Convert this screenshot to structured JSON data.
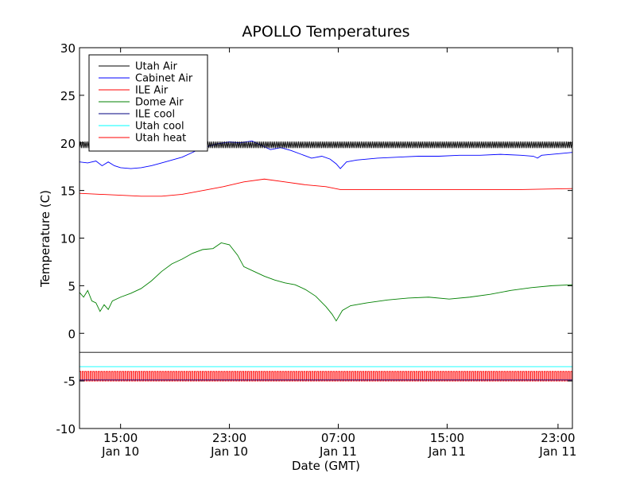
{
  "chart_data": {
    "type": "line",
    "title": "APOLLO Temperatures",
    "xlabel": "Date (GMT)",
    "ylabel": "Temperature (C)",
    "xlim": [
      10.5,
      34.5
    ],
    "ylim": [
      -10,
      30
    ],
    "y_ticks": [
      -10,
      -5,
      0,
      5,
      10,
      15,
      20,
      25,
      30
    ],
    "y_tick_labels": [
      "-10",
      "-5",
      "0",
      "5",
      "10",
      "15",
      "20",
      "25",
      "30"
    ],
    "x_ticks": [
      {
        "x": 12.5,
        "time": "15:00",
        "date": "Jan 10"
      },
      {
        "x": 17.8,
        "time": "23:00",
        "date": "Jan 10"
      },
      {
        "x": 23.1,
        "time": "07:00",
        "date": "Jan 11"
      },
      {
        "x": 28.4,
        "time": "15:00",
        "date": "Jan 11"
      },
      {
        "x": 33.8,
        "time": "23:00",
        "date": "Jan 11"
      }
    ],
    "legend_position": "top-left",
    "series": [
      {
        "name": "Utah Air",
        "color": "#000000",
        "style": "oscillating",
        "base": [
          [
            10.5,
            19.8
          ],
          [
            34.5,
            19.8
          ]
        ],
        "amplitude": 0.35,
        "period": 0.09
      },
      {
        "name": "Cabinet Air",
        "color": "#0000ff",
        "style": "line",
        "points": [
          [
            10.5,
            18.0
          ],
          [
            10.9,
            17.9
          ],
          [
            11.3,
            18.1
          ],
          [
            11.6,
            17.6
          ],
          [
            11.9,
            18.0
          ],
          [
            12.2,
            17.6
          ],
          [
            12.5,
            17.4
          ],
          [
            13.0,
            17.3
          ],
          [
            13.5,
            17.4
          ],
          [
            14.0,
            17.6
          ],
          [
            14.5,
            17.9
          ],
          [
            15.0,
            18.2
          ],
          [
            15.5,
            18.5
          ],
          [
            16.0,
            19.0
          ],
          [
            16.4,
            19.4
          ],
          [
            16.7,
            19.6
          ],
          [
            17.2,
            19.9
          ],
          [
            17.8,
            20.1
          ],
          [
            18.3,
            20.0
          ],
          [
            18.6,
            20.1
          ],
          [
            18.9,
            20.2
          ],
          [
            19.3,
            19.8
          ],
          [
            19.8,
            19.3
          ],
          [
            20.3,
            19.5
          ],
          [
            20.8,
            19.2
          ],
          [
            21.3,
            18.8
          ],
          [
            21.8,
            18.4
          ],
          [
            22.3,
            18.6
          ],
          [
            22.7,
            18.3
          ],
          [
            23.0,
            17.8
          ],
          [
            23.2,
            17.3
          ],
          [
            23.5,
            18.0
          ],
          [
            24.0,
            18.2
          ],
          [
            25.0,
            18.4
          ],
          [
            26.0,
            18.5
          ],
          [
            27.0,
            18.6
          ],
          [
            28.0,
            18.6
          ],
          [
            29.0,
            18.7
          ],
          [
            30.0,
            18.7
          ],
          [
            31.0,
            18.8
          ],
          [
            32.0,
            18.7
          ],
          [
            32.6,
            18.6
          ],
          [
            32.8,
            18.4
          ],
          [
            33.0,
            18.7
          ],
          [
            34.0,
            18.9
          ],
          [
            34.5,
            19.0
          ]
        ]
      },
      {
        "name": "ILE Air",
        "color": "#ff0000",
        "style": "line",
        "points": [
          [
            10.5,
            14.7
          ],
          [
            11.5,
            14.6
          ],
          [
            12.5,
            14.5
          ],
          [
            13.5,
            14.4
          ],
          [
            14.5,
            14.4
          ],
          [
            15.5,
            14.6
          ],
          [
            16.5,
            15.0
          ],
          [
            17.5,
            15.4
          ],
          [
            18.5,
            15.9
          ],
          [
            19.5,
            16.2
          ],
          [
            20.5,
            15.9
          ],
          [
            21.5,
            15.6
          ],
          [
            22.5,
            15.4
          ],
          [
            23.2,
            15.1
          ],
          [
            24.0,
            15.1
          ],
          [
            26.0,
            15.1
          ],
          [
            28.0,
            15.1
          ],
          [
            30.0,
            15.1
          ],
          [
            32.0,
            15.1
          ],
          [
            34.5,
            15.2
          ]
        ]
      },
      {
        "name": "Dome Air",
        "color": "#008000",
        "style": "line",
        "points": [
          [
            10.5,
            4.3
          ],
          [
            10.7,
            3.8
          ],
          [
            10.9,
            4.5
          ],
          [
            11.1,
            3.4
          ],
          [
            11.3,
            3.2
          ],
          [
            11.5,
            2.3
          ],
          [
            11.7,
            3.0
          ],
          [
            11.9,
            2.5
          ],
          [
            12.1,
            3.4
          ],
          [
            12.5,
            3.8
          ],
          [
            13.0,
            4.2
          ],
          [
            13.5,
            4.7
          ],
          [
            14.0,
            5.5
          ],
          [
            14.5,
            6.5
          ],
          [
            15.0,
            7.3
          ],
          [
            15.5,
            7.8
          ],
          [
            16.0,
            8.4
          ],
          [
            16.5,
            8.8
          ],
          [
            17.0,
            8.9
          ],
          [
            17.4,
            9.5
          ],
          [
            17.8,
            9.3
          ],
          [
            18.2,
            8.2
          ],
          [
            18.5,
            7.0
          ],
          [
            19.0,
            6.5
          ],
          [
            19.5,
            6.0
          ],
          [
            20.0,
            5.6
          ],
          [
            20.5,
            5.3
          ],
          [
            21.0,
            5.1
          ],
          [
            21.5,
            4.6
          ],
          [
            22.0,
            3.9
          ],
          [
            22.5,
            2.8
          ],
          [
            22.8,
            2.0
          ],
          [
            23.0,
            1.3
          ],
          [
            23.3,
            2.4
          ],
          [
            23.7,
            2.9
          ],
          [
            24.5,
            3.2
          ],
          [
            25.5,
            3.5
          ],
          [
            26.5,
            3.7
          ],
          [
            27.5,
            3.8
          ],
          [
            28.5,
            3.6
          ],
          [
            29.5,
            3.8
          ],
          [
            30.5,
            4.1
          ],
          [
            31.5,
            4.5
          ],
          [
            32.5,
            4.8
          ],
          [
            33.5,
            5.0
          ],
          [
            34.5,
            5.1
          ]
        ]
      },
      {
        "name": "ILE cool",
        "color": "#000080",
        "style": "constant",
        "value": -4.9
      },
      {
        "name": "Utah cool",
        "color": "#00ffff",
        "style": "constant",
        "value": -3.5
      },
      {
        "name": "Utah heat",
        "color": "#ff0000",
        "style": "square",
        "low": -5.0,
        "high": -4.0,
        "period": 0.13
      }
    ],
    "extra_lines": [
      {
        "name": "reference-line",
        "color": "#000000",
        "value": -2.0
      }
    ]
  }
}
